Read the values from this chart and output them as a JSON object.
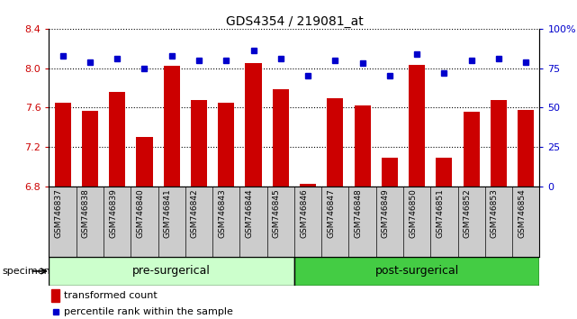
{
  "title": "GDS4354 / 219081_at",
  "samples": [
    "GSM746837",
    "GSM746838",
    "GSM746839",
    "GSM746840",
    "GSM746841",
    "GSM746842",
    "GSM746843",
    "GSM746844",
    "GSM746845",
    "GSM746846",
    "GSM746847",
    "GSM746848",
    "GSM746849",
    "GSM746850",
    "GSM746851",
    "GSM746852",
    "GSM746853",
    "GSM746854"
  ],
  "bar_values": [
    7.65,
    7.57,
    7.76,
    7.3,
    8.02,
    7.68,
    7.65,
    8.05,
    7.79,
    6.83,
    7.7,
    7.62,
    7.09,
    8.03,
    7.09,
    7.56,
    7.68,
    7.58
  ],
  "percentile_values": [
    83,
    79,
    81,
    75,
    83,
    80,
    80,
    86,
    81,
    70,
    80,
    78,
    70,
    84,
    72,
    80,
    81,
    79
  ],
  "bar_color": "#cc0000",
  "percentile_color": "#0000cc",
  "ylim_left": [
    6.8,
    8.4
  ],
  "ylim_right": [
    0,
    100
  ],
  "yticks_left": [
    6.8,
    7.2,
    7.6,
    8.0,
    8.4
  ],
  "yticks_right": [
    0,
    25,
    50,
    75,
    100
  ],
  "ytick_labels_right": [
    "0",
    "25",
    "50",
    "75",
    "100%"
  ],
  "pre_surgical_label": "pre-surgerical",
  "post_surgical_label": "post-surgerical",
  "pre_surgical_count": 9,
  "post_surgical_count": 9,
  "pre_color": "#ccffcc",
  "post_color": "#44cc44",
  "specimen_label": "specimen",
  "legend_bar_label": "transformed count",
  "legend_dot_label": "percentile rank within the sample",
  "xtick_bg_color": "#cccccc",
  "title_fontsize": 10,
  "tick_fontsize": 8,
  "bar_width": 0.6
}
